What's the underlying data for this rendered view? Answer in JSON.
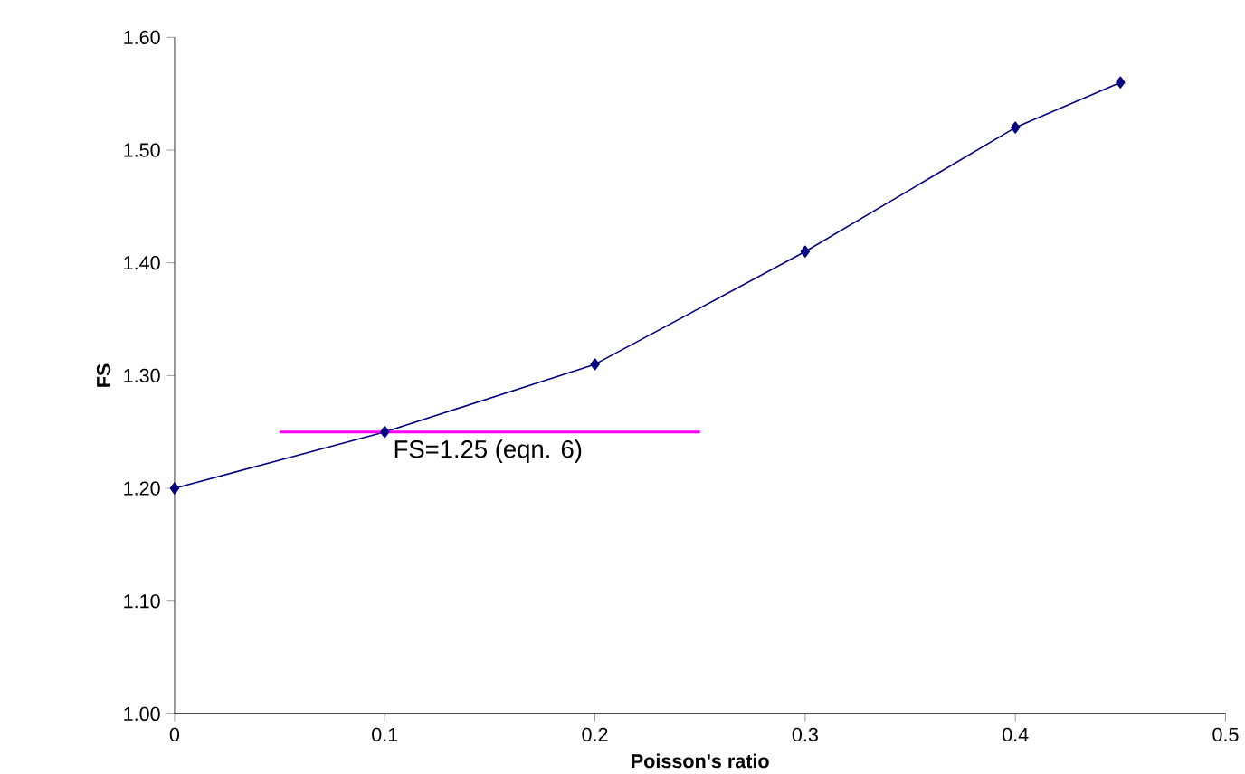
{
  "chart_data": {
    "type": "line",
    "xlabel": "Poisson's ratio",
    "ylabel": "FS",
    "xlim": [
      0,
      0.5
    ],
    "xticks": [
      0,
      0.1,
      0.2,
      0.3,
      0.4,
      0.5
    ],
    "ylim": [
      1.0,
      1.6
    ],
    "yticks": [
      {
        "value": 1.0,
        "label": "1.00"
      },
      {
        "value": 1.1,
        "label": "1.10"
      },
      {
        "value": 1.2,
        "label": "1.20"
      },
      {
        "value": 1.3,
        "label": "1.30"
      },
      {
        "value": 1.4,
        "label": "1.40"
      },
      {
        "value": 1.5,
        "label": "1.50"
      },
      {
        "value": 1.6,
        "label": "1.60"
      }
    ],
    "grid": false,
    "marker": "diamond",
    "line_style": "solid",
    "series": [
      {
        "color": "#000080",
        "x": [
          0,
          0.1,
          0.2,
          0.3,
          0.4,
          0.45
        ],
        "values": [
          1.2,
          1.25,
          1.31,
          1.41,
          1.52,
          1.56
        ]
      },
      {
        "color": "#ff00ff",
        "x": [
          0.05,
          0.25
        ],
        "values": [
          1.25,
          1.25
        ],
        "marker": "none"
      }
    ],
    "annotations": [
      {
        "text": "FS=1.25 (eqn. 6)",
        "x": 0.103,
        "y": 1.245
      }
    ]
  }
}
